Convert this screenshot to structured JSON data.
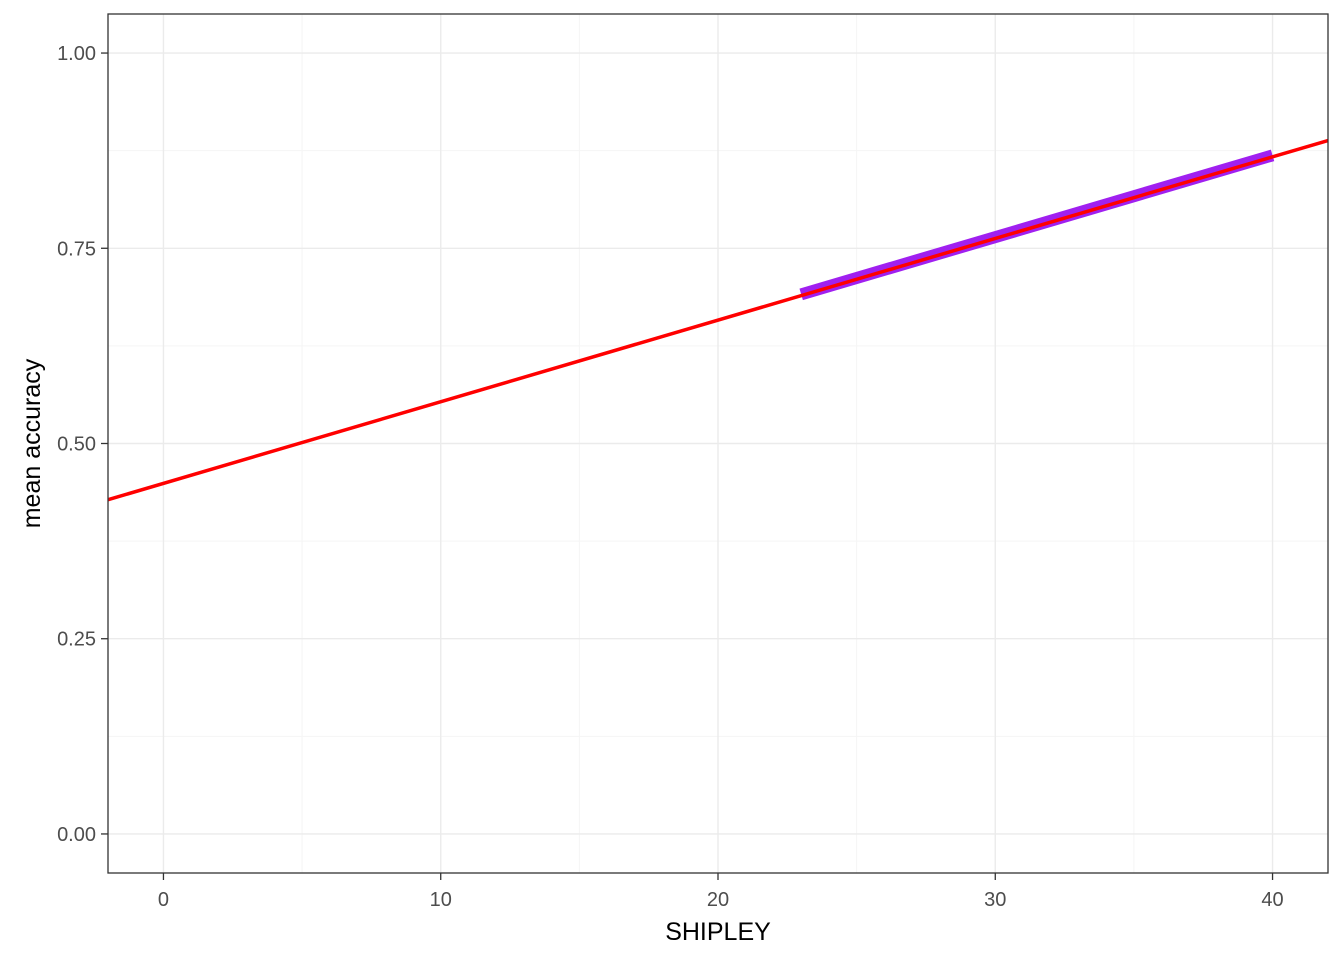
{
  "chart_data": {
    "type": "line",
    "xlabel": "SHIPLEY",
    "ylabel": "mean accuracy",
    "xlim": [
      -2,
      42
    ],
    "ylim": [
      -0.05,
      1.05
    ],
    "x_ticks": [
      0,
      10,
      20,
      30,
      40
    ],
    "x_tick_labels": [
      "0",
      "10",
      "20",
      "30",
      "40"
    ],
    "y_ticks": [
      0,
      0.25,
      0.5,
      0.75,
      1.0
    ],
    "y_tick_labels": [
      "0.00",
      "0.25",
      "0.50",
      "0.75",
      "1.00"
    ],
    "grid": true,
    "series": [
      {
        "x": [
          -2,
          42
        ],
        "y": [
          0.428,
          0.888
        ],
        "color": "#ff0000"
      },
      {
        "x": [
          23,
          40
        ],
        "y": [
          0.691,
          0.869
        ],
        "color": "#a020f0"
      }
    ]
  },
  "colors": {
    "background": "#ffffff",
    "panel_border": "#333333",
    "grid_major": "#ebebeb",
    "grid_minor": "#f5f5f5",
    "tick_text": "#4d4d4d",
    "axis_title": "#000000"
  }
}
